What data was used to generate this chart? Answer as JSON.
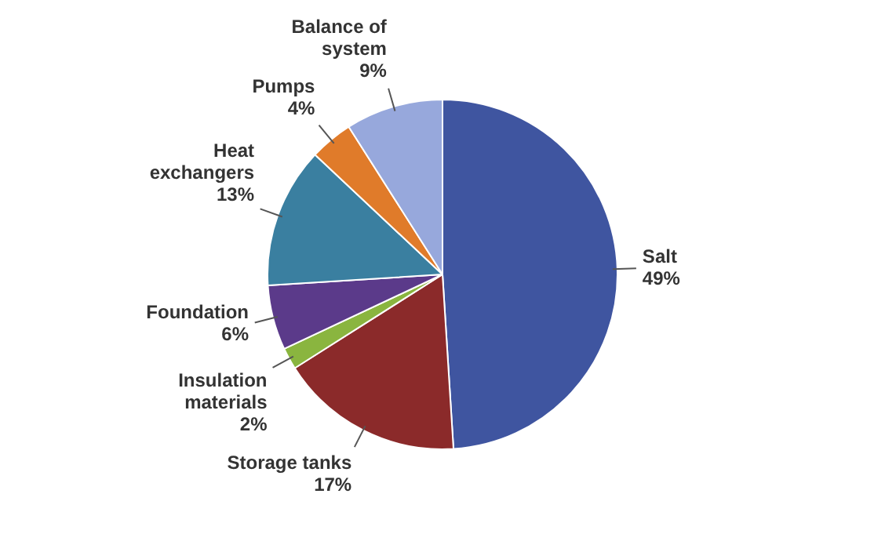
{
  "chart_data": {
    "type": "pie",
    "categories": [
      "Salt",
      "Storage tanks",
      "Insulation materials",
      "Foundation",
      "Heat exchangers",
      "Pumps",
      "Balance of system"
    ],
    "values": [
      49,
      17,
      2,
      6,
      13,
      4,
      9
    ],
    "value_labels": [
      "49%",
      "17%",
      "2%",
      "6%",
      "13%",
      "4%",
      "9%"
    ],
    "colors": [
      "#3f55a0",
      "#8b2a2a",
      "#8ab53f",
      "#5b3a8a",
      "#3a7fa0",
      "#e07b2a",
      "#97a8dc"
    ],
    "legend": false
  }
}
